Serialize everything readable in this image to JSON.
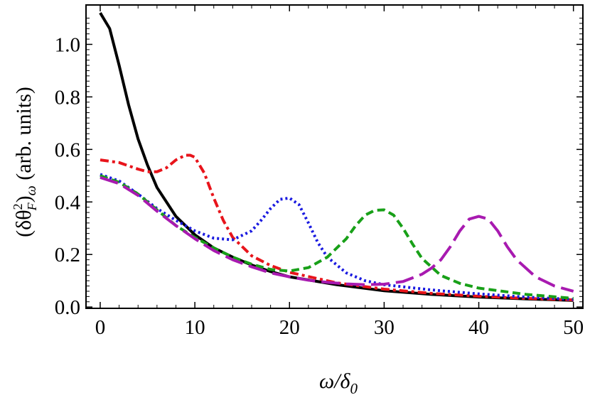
{
  "chart_data": {
    "type": "line",
    "title": "",
    "xlabel": "ω/δ0",
    "xlabel_main": "ω/δ",
    "xlabel_sub": "0",
    "ylabel": "(δθ_F^2)_ω (arb. units)",
    "ylabel_parts": {
      "open": "(δθ",
      "sup": "2",
      "sub_f": "F",
      "close": ")",
      "sub_omega": "ω",
      "units": " (arb. units)"
    },
    "xlim": [
      -1.5,
      51
    ],
    "ylim": [
      -0.005,
      1.15
    ],
    "xticks": [
      0,
      10,
      20,
      30,
      40,
      50
    ],
    "xtick_labels": [
      "0",
      "10",
      "20",
      "30",
      "40",
      "50"
    ],
    "yticks": [
      0.0,
      0.2,
      0.4,
      0.6,
      0.8,
      1.0
    ],
    "ytick_labels": [
      "0.0",
      "0.2",
      "0.4",
      "0.6",
      "0.8",
      "1.0"
    ],
    "grid": false,
    "series": [
      {
        "name": "black solid",
        "color": "#000000",
        "dash": "solid",
        "x": [
          0,
          1,
          2,
          3,
          4,
          5,
          6,
          8,
          10,
          12,
          14,
          16,
          18,
          20,
          25,
          30,
          35,
          40,
          45,
          50
        ],
        "y": [
          1.12,
          1.06,
          0.92,
          0.77,
          0.64,
          0.54,
          0.455,
          0.345,
          0.275,
          0.225,
          0.19,
          0.16,
          0.135,
          0.115,
          0.085,
          0.062,
          0.048,
          0.038,
          0.031,
          0.025
        ]
      },
      {
        "name": "red dash-dot",
        "color": "#e8141b",
        "dash": "dashdot",
        "x": [
          0,
          2,
          4,
          5,
          6,
          7,
          8,
          9,
          9.5,
          10,
          11,
          12,
          13,
          14,
          16,
          18,
          20,
          25,
          30,
          35,
          40,
          45,
          50
        ],
        "y": [
          0.56,
          0.55,
          0.525,
          0.515,
          0.515,
          0.53,
          0.56,
          0.578,
          0.578,
          0.57,
          0.51,
          0.415,
          0.33,
          0.265,
          0.195,
          0.158,
          0.132,
          0.092,
          0.068,
          0.052,
          0.041,
          0.033,
          0.027
        ]
      },
      {
        "name": "blue dotted",
        "color": "#1a1ae0",
        "dash": "dotted",
        "x": [
          0,
          2,
          4,
          6,
          8,
          10,
          12,
          14,
          16,
          17,
          18,
          19,
          20,
          21,
          22,
          23,
          24,
          26,
          28,
          30,
          35,
          40,
          45,
          50
        ],
        "y": [
          0.505,
          0.48,
          0.43,
          0.375,
          0.33,
          0.29,
          0.262,
          0.256,
          0.29,
          0.33,
          0.375,
          0.41,
          0.415,
          0.39,
          0.32,
          0.245,
          0.19,
          0.13,
          0.1,
          0.085,
          0.065,
          0.05,
          0.038,
          0.029
        ]
      },
      {
        "name": "green dashed",
        "color": "#18a018",
        "dash": "dashed",
        "x": [
          0,
          2,
          4,
          6,
          8,
          10,
          12,
          14,
          16,
          18,
          20,
          22,
          24,
          26,
          27,
          28,
          29,
          30,
          31,
          32,
          33,
          34,
          36,
          38,
          40,
          45,
          50
        ],
        "y": [
          0.5,
          0.475,
          0.43,
          0.37,
          0.31,
          0.265,
          0.225,
          0.19,
          0.163,
          0.143,
          0.137,
          0.15,
          0.19,
          0.26,
          0.31,
          0.35,
          0.368,
          0.37,
          0.35,
          0.3,
          0.24,
          0.185,
          0.12,
          0.09,
          0.072,
          0.048,
          0.033
        ]
      },
      {
        "name": "magenta long-dash",
        "color": "#a81ab0",
        "dash": "longdash",
        "x": [
          0,
          2,
          4,
          6,
          8,
          10,
          12,
          14,
          16,
          18,
          20,
          22,
          24,
          26,
          28,
          30,
          32,
          34,
          35,
          36,
          37,
          38,
          39,
          40,
          41,
          42,
          43,
          44,
          46,
          48,
          50
        ],
        "y": [
          0.493,
          0.47,
          0.425,
          0.365,
          0.31,
          0.26,
          0.215,
          0.18,
          0.153,
          0.13,
          0.115,
          0.102,
          0.094,
          0.088,
          0.085,
          0.087,
          0.097,
          0.125,
          0.148,
          0.18,
          0.23,
          0.29,
          0.335,
          0.345,
          0.335,
          0.29,
          0.23,
          0.18,
          0.115,
          0.08,
          0.06
        ]
      }
    ]
  }
}
